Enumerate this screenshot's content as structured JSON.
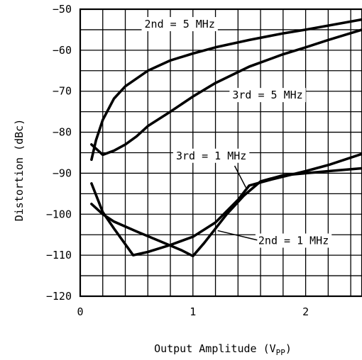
{
  "chart_data": {
    "type": "line",
    "xlabel_main": "Output Amplitude (V",
    "xlabel_sub": "PP",
    "xlabel_close": ")",
    "ylabel": "Distortion (dBc)",
    "xlim": [
      0,
      2.5
    ],
    "ylim": [
      -120,
      -50
    ],
    "grid": true,
    "x_ticks": [
      {
        "value": 0,
        "label": "0"
      },
      {
        "value": 1,
        "label": "1"
      },
      {
        "value": 2,
        "label": "2"
      }
    ],
    "y_ticks": [
      {
        "value": -50,
        "label": "−50"
      },
      {
        "value": -60,
        "label": "−60"
      },
      {
        "value": -70,
        "label": "−70"
      },
      {
        "value": -80,
        "label": "−80"
      },
      {
        "value": -90,
        "label": "−90"
      },
      {
        "value": -100,
        "label": "−100"
      },
      {
        "value": -110,
        "label": "−110"
      },
      {
        "value": -120,
        "label": "−120"
      }
    ],
    "series": [
      {
        "name": "2nd = 5 MHz",
        "points": [
          [
            0.1,
            -86.7
          ],
          [
            0.14,
            -82
          ],
          [
            0.2,
            -77
          ],
          [
            0.3,
            -71.8
          ],
          [
            0.4,
            -68.8
          ],
          [
            0.6,
            -65
          ],
          [
            0.8,
            -62.5
          ],
          [
            1.0,
            -60.8
          ],
          [
            1.2,
            -59.3
          ],
          [
            1.5,
            -57.5
          ],
          [
            1.8,
            -55.9
          ],
          [
            2.0,
            -55
          ],
          [
            2.2,
            -54
          ],
          [
            2.5,
            -52.5
          ]
        ]
      },
      {
        "name": "3rd = 5 MHz",
        "points": [
          [
            0.1,
            -83
          ],
          [
            0.2,
            -85.5
          ],
          [
            0.3,
            -84.5
          ],
          [
            0.4,
            -83
          ],
          [
            0.5,
            -81
          ],
          [
            0.6,
            -78.5
          ],
          [
            0.8,
            -75
          ],
          [
            1.0,
            -71.3
          ],
          [
            1.2,
            -68
          ],
          [
            1.5,
            -64
          ],
          [
            1.8,
            -61
          ],
          [
            2.0,
            -59.3
          ],
          [
            2.2,
            -57.5
          ],
          [
            2.5,
            -55
          ]
        ]
      },
      {
        "name": "3rd = 1 MHz",
        "points": [
          [
            0.1,
            -92.5
          ],
          [
            0.2,
            -99.5
          ],
          [
            0.3,
            -103.5
          ],
          [
            0.47,
            -110
          ],
          [
            0.6,
            -109.2
          ],
          [
            0.8,
            -107.5
          ],
          [
            1.0,
            -105.5
          ],
          [
            1.2,
            -102
          ],
          [
            1.4,
            -96.5
          ],
          [
            1.5,
            -93
          ],
          [
            1.7,
            -91.5
          ],
          [
            2.0,
            -89.5
          ],
          [
            2.2,
            -88
          ],
          [
            2.5,
            -85.3
          ]
        ]
      },
      {
        "name": "2nd = 1 MHz",
        "points": [
          [
            0.1,
            -97.5
          ],
          [
            0.2,
            -100
          ],
          [
            0.3,
            -101.8
          ],
          [
            0.5,
            -104.2
          ],
          [
            0.7,
            -106.5
          ],
          [
            0.9,
            -108.8
          ],
          [
            1.0,
            -110.2
          ],
          [
            1.1,
            -107
          ],
          [
            1.3,
            -100
          ],
          [
            1.45,
            -95.5
          ],
          [
            1.6,
            -92
          ],
          [
            1.8,
            -90.5
          ],
          [
            2.0,
            -90
          ],
          [
            2.2,
            -89.5
          ],
          [
            2.5,
            -88.8
          ]
        ]
      }
    ],
    "annotations": [
      {
        "text": "2nd = 5 MHz",
        "x": 0.57,
        "y": -54.5
      },
      {
        "text": "3rd = 5 MHz",
        "x": 1.35,
        "y": -71.8
      },
      {
        "text": "3rd = 1 MHz",
        "x": 0.85,
        "y": -86.6
      },
      {
        "text": "2nd = 1 MHz",
        "x": 1.58,
        "y": -107.3
      }
    ]
  }
}
